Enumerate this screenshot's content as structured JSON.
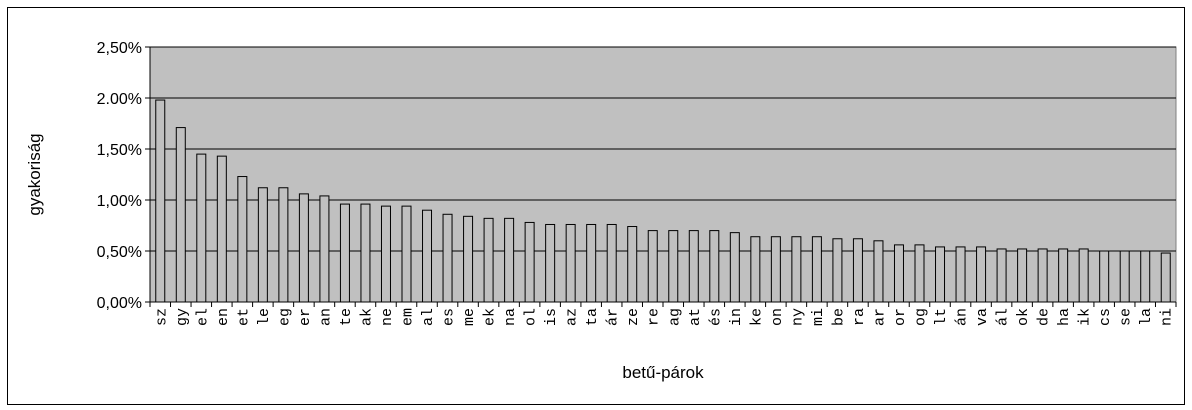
{
  "chart_data": {
    "type": "bar",
    "xlabel": "betű-párok",
    "ylabel": "gyakoriság",
    "ylim": [
      0,
      0.025
    ],
    "y_ticks": [
      "0,00%",
      "0,50%",
      "1,00%",
      "1,50%",
      "2.00%",
      "2,50%"
    ],
    "grid": true,
    "legend": "none",
    "colors": {
      "plot_bg": "#c0c0c0",
      "bar": "#c0c0c0",
      "bar_stroke": "#000000",
      "grid": "#000000"
    },
    "categories": [
      "sz",
      "gy",
      "el",
      "en",
      "et",
      "le",
      "eg",
      "er",
      "an",
      "te",
      "ak",
      "ne",
      "em",
      "al",
      "es",
      "me",
      "ek",
      "na",
      "ol",
      "is",
      "az",
      "ta",
      "ár",
      "ze",
      "re",
      "ag",
      "at",
      "és",
      "in",
      "ke",
      "on",
      "ny",
      "mi",
      "be",
      "ra",
      "ar",
      "or",
      "og",
      "lt",
      "án",
      "va",
      "ál",
      "ok",
      "de",
      "ha",
      "ik",
      "cs",
      "se",
      "la",
      "ni"
    ],
    "values": [
      0.0198,
      0.0171,
      0.0145,
      0.0143,
      0.0123,
      0.0112,
      0.0112,
      0.0106,
      0.0104,
      0.0096,
      0.0096,
      0.0094,
      0.0094,
      0.009,
      0.0086,
      0.0084,
      0.0082,
      0.0082,
      0.0078,
      0.0076,
      0.0076,
      0.0076,
      0.0076,
      0.0074,
      0.007,
      0.007,
      0.007,
      0.007,
      0.0068,
      0.0064,
      0.0064,
      0.0064,
      0.0064,
      0.0062,
      0.0062,
      0.006,
      0.0056,
      0.0056,
      0.0054,
      0.0054,
      0.0054,
      0.0052,
      0.0052,
      0.0052,
      0.0052,
      0.0052,
      0.005,
      0.005,
      0.005,
      0.0048
    ]
  }
}
